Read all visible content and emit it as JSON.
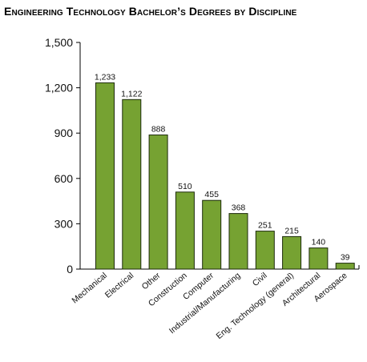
{
  "chart_data": {
    "type": "bar",
    "title": "Engineering Technology Bachelor’s Degrees by Discipline",
    "categories": [
      "Mechanical",
      "Electrical",
      "Other",
      "Construction",
      "Computer",
      "Industrial/Manufacturing",
      "Civil",
      "Eng. Technology (general)",
      "Architectural",
      "Aerospace"
    ],
    "values": [
      1233,
      1122,
      888,
      510,
      455,
      368,
      251,
      215,
      140,
      39
    ],
    "data_labels": [
      "1,233",
      "1,122",
      "888",
      "510",
      "455",
      "368",
      "251",
      "215",
      "140",
      "39"
    ],
    "y_ticks": [
      0,
      300,
      600,
      900,
      1200,
      1500
    ],
    "y_tick_labels": [
      "0",
      "300",
      "600",
      "900",
      "1,200",
      "1,500"
    ],
    "ylim": [
      0,
      1500
    ],
    "xlabel": "",
    "ylabel": "",
    "grid": false,
    "colors": {
      "bar_fill": "#76a232",
      "bar_stroke": "#1c2a0b",
      "axis": "#000000"
    }
  }
}
